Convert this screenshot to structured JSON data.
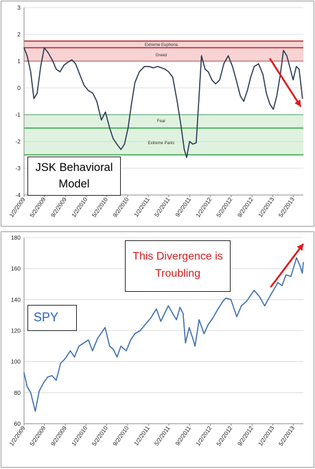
{
  "chart_data": [
    {
      "type": "line",
      "title": "JSK Behavioral Model",
      "ylim": [
        -4,
        3
      ],
      "y_ticks": [
        3,
        2,
        1,
        0,
        -1,
        -2,
        -3,
        -4
      ],
      "x_ticks": [
        "1/2/2009",
        "5/2/2009",
        "9/2/2009",
        "1/2/2010",
        "5/2/2010",
        "9/2/2010",
        "1/2/2011",
        "5/2/2011",
        "9/2/2011",
        "1/2/2012",
        "5/2/2012",
        "9/2/2012",
        "1/2/2013",
        "5/2/2013"
      ],
      "x_range": [
        "2009-01-02",
        "2013-06-30"
      ],
      "grid": "horizontal",
      "zones": [
        {
          "name": "Extreme Euphoria",
          "from": 1.5,
          "to": 1.75,
          "color": "#f8d3d3",
          "line_color": "#b42020"
        },
        {
          "name": "Greed",
          "from": 1.0,
          "to": 1.5,
          "color": "#f8d3d3",
          "line_color": "#b42020"
        },
        {
          "name": "Fear",
          "from": -1.5,
          "to": -1.0,
          "color": "#dff2df",
          "line_color": "#2e9e44"
        },
        {
          "name": "Extreme Panic",
          "from": -2.5,
          "to": -1.5,
          "color": "#dff2df",
          "line_color": "#2e9e44"
        }
      ],
      "series": [
        {
          "color": "#2b3b55",
          "x": [
            "2009-01-02",
            "2009-01-20",
            "2009-02-10",
            "2009-03-01",
            "2009-03-20",
            "2009-04-10",
            "2009-05-01",
            "2009-05-25",
            "2009-06-20",
            "2009-07-10",
            "2009-08-01",
            "2009-08-25",
            "2009-09-15",
            "2009-10-10",
            "2009-11-01",
            "2009-11-25",
            "2009-12-20",
            "2010-01-15",
            "2010-02-10",
            "2010-03-05",
            "2010-04-01",
            "2010-04-25",
            "2010-05-20",
            "2010-06-10",
            "2010-07-01",
            "2010-07-25",
            "2010-08-15",
            "2010-09-05",
            "2010-09-25",
            "2010-10-15",
            "2010-11-10",
            "2010-12-10",
            "2011-01-05",
            "2011-02-01",
            "2011-02-25",
            "2011-03-20",
            "2011-04-10",
            "2011-05-01",
            "2011-05-25",
            "2011-06-20",
            "2011-07-10",
            "2011-08-01",
            "2011-08-15",
            "2011-09-01",
            "2011-09-20",
            "2011-10-10",
            "2011-10-25",
            "2011-11-10",
            "2011-12-01",
            "2011-12-20",
            "2012-01-10",
            "2012-02-01",
            "2012-02-25",
            "2012-03-20",
            "2012-04-15",
            "2012-05-10",
            "2012-06-01",
            "2012-06-25",
            "2012-07-15",
            "2012-08-05",
            "2012-08-25",
            "2012-09-15",
            "2012-10-10",
            "2012-11-05",
            "2012-11-25",
            "2012-12-15",
            "2013-01-05",
            "2013-01-25",
            "2013-02-15",
            "2013-03-05",
            "2013-03-25",
            "2013-04-15",
            "2013-05-01",
            "2013-05-20",
            "2013-06-05",
            "2013-06-25"
          ],
          "y": [
            1.5,
            1.2,
            0.6,
            -0.4,
            -0.2,
            0.8,
            1.5,
            1.3,
            1.0,
            0.7,
            0.6,
            0.85,
            0.95,
            1.05,
            0.9,
            0.5,
            0.1,
            -0.1,
            -0.2,
            -0.5,
            -1.2,
            -0.9,
            -1.5,
            -1.9,
            -2.1,
            -2.3,
            -2.1,
            -1.5,
            -0.6,
            0.2,
            0.6,
            0.8,
            0.8,
            0.75,
            0.8,
            0.75,
            0.7,
            0.6,
            0.4,
            -0.5,
            -1.3,
            -2.3,
            -2.6,
            -2.0,
            -2.1,
            -2.05,
            -0.5,
            1.2,
            0.7,
            0.6,
            0.3,
            0.15,
            0.3,
            0.9,
            1.2,
            0.8,
            0.3,
            -0.3,
            -0.5,
            -0.1,
            0.4,
            0.8,
            0.9,
            0.5,
            -0.2,
            -0.6,
            -0.8,
            -0.3,
            0.5,
            1.4,
            1.2,
            0.7,
            0.3,
            0.8,
            0.7,
            -0.4
          ]
        }
      ],
      "annotation_arrow": {
        "color": "#e01818",
        "from": [
          "2012-12-15",
          1.1
        ],
        "to": [
          "2013-06-15",
          -0.7
        ]
      },
      "legend": "none"
    },
    {
      "type": "line",
      "title": "SPY",
      "ylim": [
        60,
        180
      ],
      "y_ticks": [
        180,
        160,
        140,
        120,
        100,
        80,
        60
      ],
      "x_ticks": [
        "1/2/2009",
        "5/2/2009",
        "9/2/2009",
        "1/2/2010",
        "5/2/2010",
        "9/2/2010",
        "1/2/2011",
        "5/2/2011",
        "9/2/2011",
        "1/2/2012",
        "5/2/2012",
        "9/2/2012",
        "1/2/2013",
        "5/2/2013"
      ],
      "x_range": [
        "2009-01-02",
        "2013-06-30"
      ],
      "grid": "horizontal",
      "series": [
        {
          "name": "SPY",
          "color": "#3d6eb0",
          "x": [
            "2009-01-02",
            "2009-01-20",
            "2009-02-10",
            "2009-03-09",
            "2009-04-01",
            "2009-04-25",
            "2009-05-20",
            "2009-06-15",
            "2009-07-10",
            "2009-08-05",
            "2009-09-01",
            "2009-10-01",
            "2009-10-25",
            "2009-11-20",
            "2010-01-15",
            "2010-02-08",
            "2010-03-10",
            "2010-04-23",
            "2010-05-20",
            "2010-06-10",
            "2010-07-02",
            "2010-07-25",
            "2010-08-25",
            "2010-09-20",
            "2010-10-15",
            "2010-11-15",
            "2010-12-15",
            "2011-01-15",
            "2011-02-18",
            "2011-03-16",
            "2011-04-29",
            "2011-05-25",
            "2011-06-16",
            "2011-07-07",
            "2011-07-25",
            "2011-08-08",
            "2011-08-30",
            "2011-09-20",
            "2011-10-03",
            "2011-10-27",
            "2011-11-25",
            "2011-12-20",
            "2012-01-15",
            "2012-02-15",
            "2012-03-15",
            "2012-04-02",
            "2012-05-01",
            "2012-06-04",
            "2012-07-01",
            "2012-08-01",
            "2012-09-14",
            "2012-10-15",
            "2012-11-15",
            "2012-12-15",
            "2013-01-05",
            "2013-02-01",
            "2013-02-25",
            "2013-03-20",
            "2013-04-18",
            "2013-05-21",
            "2013-06-10",
            "2013-06-24",
            "2013-06-30"
          ],
          "y": [
            93,
            84,
            80,
            68,
            81,
            86,
            90,
            91,
            88,
            99,
            102,
            107,
            103,
            110,
            114,
            107,
            115,
            122,
            110,
            108,
            103,
            110,
            107,
            114,
            118,
            120,
            124,
            128,
            134,
            126,
            136,
            131,
            127,
            135,
            131,
            112,
            122,
            115,
            110,
            127,
            118,
            124,
            128,
            134,
            139,
            141,
            140,
            129,
            136,
            139,
            146,
            142,
            136,
            142,
            146,
            151,
            149,
            156,
            155,
            167,
            162,
            157,
            164
          ]
        }
      ],
      "annotation_arrow": {
        "color": "#e01818",
        "from": [
          "2012-12-20",
          148
        ],
        "to": [
          "2013-06-30",
          176
        ]
      },
      "legend": "none"
    }
  ],
  "top": {
    "label_line1": "JSK Behavioral",
    "label_line2": "Model",
    "zone_labels": {
      "extreme_euphoria": "Extreme Euphoria",
      "greed": "Greed",
      "fear": "Fear",
      "extreme_panic": "Extreme Panic"
    }
  },
  "bottom": {
    "label": "SPY",
    "divergence_line1": "This Divergence is",
    "divergence_line2": "Troubling"
  }
}
